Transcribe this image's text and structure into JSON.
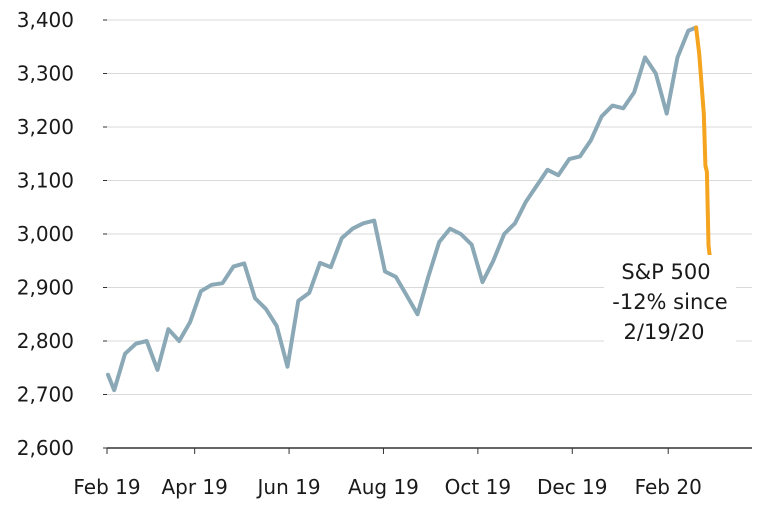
{
  "chart_data": {
    "type": "line",
    "x_unit": "weekly close, Feb 2019 - Feb 2020",
    "ylim": [
      2600,
      3400
    ],
    "y_ticks": [
      "2,600",
      "2,700",
      "2,800",
      "2,900",
      "3,000",
      "3,100",
      "3,200",
      "3,300",
      "3,400"
    ],
    "x_ticks": [
      "Feb 19",
      "Apr 19",
      "Jun 19",
      "Aug 19",
      "Oct 19",
      "Dec 19",
      "Feb 20"
    ],
    "grid": "horizontal",
    "colors": {
      "main": "#8aa8b6",
      "selloff": "#f4a41e",
      "grid": "#d9d9d9",
      "axis": "#333333"
    },
    "series": [
      {
        "x": [
          "2019-02-04",
          "2019-02-08",
          "2019-02-15",
          "2019-02-22",
          "2019-03-01",
          "2019-03-08",
          "2019-03-15",
          "2019-03-22",
          "2019-03-29",
          "2019-04-05",
          "2019-04-12",
          "2019-04-19",
          "2019-04-26",
          "2019-05-03",
          "2019-05-10",
          "2019-05-17",
          "2019-05-24",
          "2019-05-31",
          "2019-06-07",
          "2019-06-14",
          "2019-06-21",
          "2019-06-28",
          "2019-07-05",
          "2019-07-12",
          "2019-07-19",
          "2019-07-26",
          "2019-08-02",
          "2019-08-09",
          "2019-08-16",
          "2019-08-23",
          "2019-08-30",
          "2019-09-06",
          "2019-09-13",
          "2019-09-20",
          "2019-09-27",
          "2019-10-04",
          "2019-10-11",
          "2019-10-18",
          "2019-10-25",
          "2019-11-01",
          "2019-11-08",
          "2019-11-15",
          "2019-11-22",
          "2019-11-29",
          "2019-12-06",
          "2019-12-13",
          "2019-12-20",
          "2019-12-27",
          "2020-01-03",
          "2020-01-10",
          "2020-01-17",
          "2020-01-24",
          "2020-01-31",
          "2020-02-07",
          "2020-02-14",
          "2020-02-19"
        ],
        "values": [
          2737,
          2708,
          2776,
          2795,
          2800,
          2746,
          2822,
          2800,
          2835,
          2893,
          2905,
          2908,
          2939,
          2945,
          2880,
          2860,
          2828,
          2752,
          2875,
          2890,
          2946,
          2938,
          2992,
          3010,
          3020,
          3025,
          2930,
          2920,
          2885,
          2850,
          2920,
          2985,
          3010,
          3000,
          2980,
          2910,
          2950,
          3000,
          3020,
          3060,
          3090,
          3120,
          3110,
          3140,
          3145,
          3175,
          3220,
          3240,
          3235,
          3265,
          3330,
          3300,
          3225,
          3330,
          3380,
          3386
        ]
      },
      {
        "x": [
          "2020-02-19",
          "2020-02-21",
          "2020-02-24",
          "2020-02-25",
          "2020-02-26",
          "2020-02-27",
          "2020-02-28"
        ],
        "values": [
          3386,
          3337,
          3225,
          3128,
          3116,
          2979,
          2954
        ]
      }
    ],
    "annotation": [
      "S&P 500",
      "-12% since",
      "2/19/20"
    ]
  }
}
